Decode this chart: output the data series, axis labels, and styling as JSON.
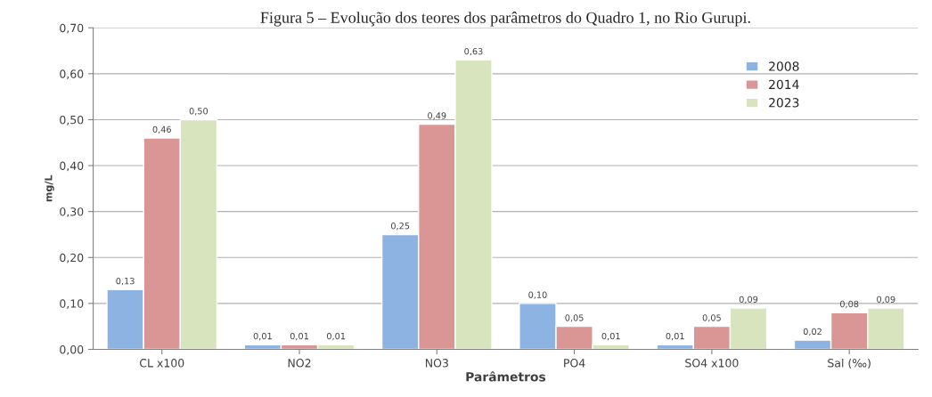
{
  "chart_data": {
    "type": "bar",
    "title": "Figura 5 – Evolução dos teores dos parâmetros do Quadro 1, no Rio Gurupi.",
    "xlabel": "Parâmetros",
    "ylabel": "mg/L",
    "categories": [
      "CL x100",
      "NO2",
      "NO3",
      "PO4",
      "SO4 x100",
      "Sal (‰)"
    ],
    "series": [
      {
        "name": "2008",
        "color": "#8db3e2",
        "values": [
          0.13,
          0.01,
          0.25,
          0.1,
          0.01,
          0.02
        ],
        "value_labels": [
          "0,13",
          "0,01",
          "0,25",
          "0,10",
          "0,01",
          "0,02"
        ]
      },
      {
        "name": "2014",
        "color": "#d99694",
        "values": [
          0.46,
          0.01,
          0.49,
          0.05,
          0.05,
          0.08
        ],
        "value_labels": [
          "0,46",
          "0,01",
          "0,49",
          "0,05",
          "0,05",
          "0,08"
        ]
      },
      {
        "name": "2023",
        "color": "#d7e4bd",
        "values": [
          0.5,
          0.01,
          0.63,
          0.01,
          0.09,
          0.09
        ],
        "value_labels": [
          "0,50",
          "0,01",
          "0,63",
          "0,01",
          "0,09",
          "0,09"
        ]
      }
    ],
    "ylim": [
      0,
      0.7
    ],
    "yticks": [
      {
        "value": 0,
        "label": "0,00"
      },
      {
        "value": 0.1,
        "label": "0,10"
      },
      {
        "value": 0.2,
        "label": "0,20"
      },
      {
        "value": 0.3,
        "label": "0,30"
      },
      {
        "value": 0.4,
        "label": "0,40"
      },
      {
        "value": 0.5,
        "label": "0,50"
      },
      {
        "value": 0.6,
        "label": "0,60"
      },
      {
        "value": 0.7,
        "label": "0,70"
      }
    ],
    "grid": "y",
    "legend": "top right"
  }
}
